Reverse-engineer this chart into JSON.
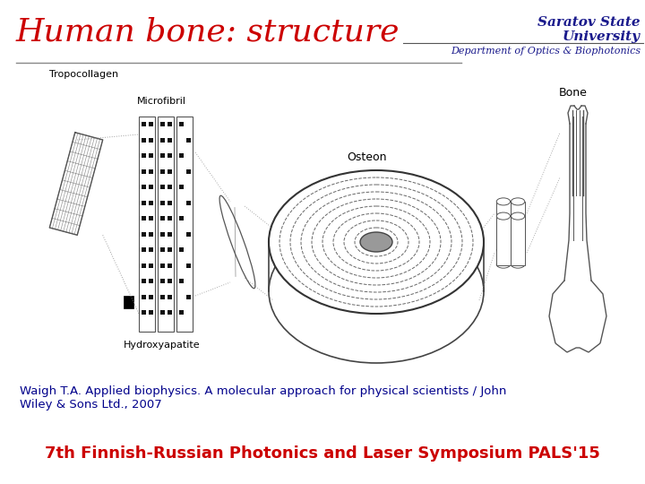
{
  "bg_color": "#ffffff",
  "title_text": "Human bone: structure",
  "title_color": "#cc0000",
  "title_fontsize": 26,
  "uni_line1": "Saratov State",
  "uni_line2": "University",
  "uni_color": "#1a1a8c",
  "uni_fontsize": 11,
  "dept_text": "Department of Optics & Biophotonics",
  "dept_color": "#1a1a8c",
  "dept_fontsize": 8,
  "ref_text": "Waigh T.A. Applied biophysics. A molecular approach for physical scientists / John\nWiley & Sons Ltd., 2007",
  "ref_color": "#00008b",
  "ref_fontsize": 9.5,
  "footer_text": "7th Finnish-Russian Photonics and Laser Symposium PALS'15",
  "footer_color": "#cc0000",
  "footer_fontsize": 13,
  "edge_color": "#555555",
  "line_color": "#888888"
}
